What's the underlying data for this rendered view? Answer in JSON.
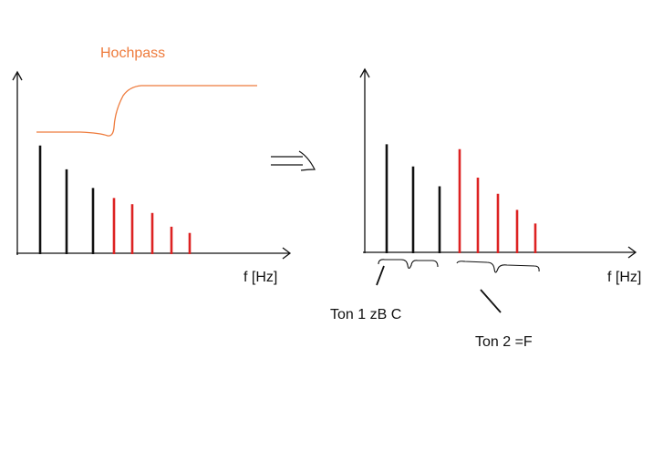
{
  "left_panel": {
    "filter_label": "Hochpass",
    "x_axis_label": "f [Hz]",
    "harmonics": [
      {
        "level": 0.87,
        "color": "#111111"
      },
      {
        "level": 0.68,
        "color": "#111111"
      },
      {
        "level": 0.53,
        "color": "#111111"
      },
      {
        "level": 0.45,
        "color": "#dd2222"
      },
      {
        "level": 0.4,
        "color": "#dd2222"
      },
      {
        "level": 0.33,
        "color": "#dd2222"
      },
      {
        "level": 0.22,
        "color": "#dd2222"
      },
      {
        "level": 0.17,
        "color": "#dd2222"
      }
    ]
  },
  "arrow_icon": "implies-arrow-icon",
  "right_panel": {
    "x_axis_label": "f [Hz]",
    "tone1_label": "Ton 1 zB C",
    "tone2_label": "Ton 2 =F",
    "harmonics": [
      {
        "level": 0.88,
        "color": "#111111"
      },
      {
        "level": 0.7,
        "color": "#111111"
      },
      {
        "level": 0.54,
        "color": "#111111"
      },
      {
        "level": 0.84,
        "color": "#dd2222"
      },
      {
        "level": 0.61,
        "color": "#dd2222"
      },
      {
        "level": 0.48,
        "color": "#dd2222"
      },
      {
        "level": 0.35,
        "color": "#dd2222"
      },
      {
        "level": 0.24,
        "color": "#dd2222"
      }
    ]
  },
  "colors": {
    "filter_curve": "#ee7b3c",
    "ink": "#111111",
    "highlight": "#dd2222"
  }
}
